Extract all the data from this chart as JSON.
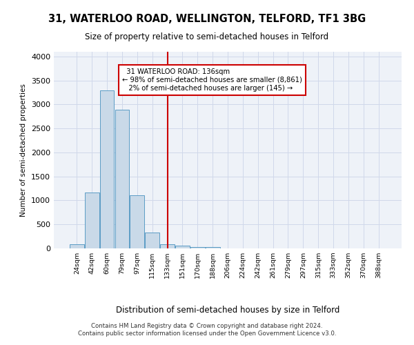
{
  "title_line1": "31, WATERLOO ROAD, WELLINGTON, TELFORD, TF1 3BG",
  "title_line2": "Size of property relative to semi-detached houses in Telford",
  "xlabel": "Distribution of semi-detached houses by size in Telford",
  "ylabel": "Number of semi-detached properties",
  "footer": "Contains HM Land Registry data © Crown copyright and database right 2024.\nContains public sector information licensed under the Open Government Licence v3.0.",
  "bin_labels": [
    "24sqm",
    "42sqm",
    "60sqm",
    "79sqm",
    "97sqm",
    "115sqm",
    "133sqm",
    "151sqm",
    "170sqm",
    "188sqm",
    "206sqm",
    "224sqm",
    "242sqm",
    "261sqm",
    "279sqm",
    "297sqm",
    "315sqm",
    "333sqm",
    "352sqm",
    "370sqm",
    "388sqm"
  ],
  "bar_values": [
    90,
    1160,
    3300,
    2890,
    1110,
    330,
    90,
    55,
    35,
    30,
    0,
    0,
    0,
    0,
    0,
    0,
    0,
    0,
    0,
    0,
    0
  ],
  "bar_color": "#c9d9e8",
  "bar_edge_color": "#5a9cc5",
  "grid_color": "#d0d8ea",
  "vline_color": "#cc0000",
  "annotation_text": "  31 WATERLOO ROAD: 136sqm\n← 98% of semi-detached houses are smaller (8,861)\n   2% of semi-detached houses are larger (145) →",
  "annotation_box_color": "#ffffff",
  "annotation_box_edge": "#cc0000",
  "ylim": [
    0,
    4100
  ],
  "bg_color": "#eef2f8",
  "subject_bin_index": 6,
  "vline_position": 6.5
}
